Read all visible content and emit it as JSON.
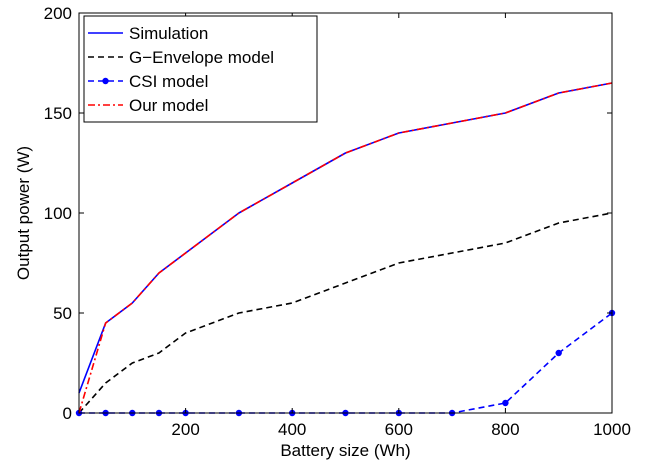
{
  "chart_data": {
    "type": "line",
    "title": "",
    "xlabel": "Battery size (Wh)",
    "ylabel": "Output power (W)",
    "xlim": [
      0,
      1000
    ],
    "ylim": [
      0,
      200
    ],
    "x_ticks": [
      200,
      400,
      600,
      800,
      1000
    ],
    "y_ticks": [
      0,
      50,
      100,
      150,
      200
    ],
    "grid": false,
    "legend_position": "top-left",
    "series": [
      {
        "name": "Simulation",
        "color": "#0000ff",
        "line_style": "solid",
        "marker": "none",
        "x": [
          0,
          50,
          100,
          150,
          200,
          300,
          400,
          500,
          600,
          700,
          800,
          900,
          1000
        ],
        "y": [
          10,
          45,
          55,
          70,
          80,
          100,
          115,
          130,
          140,
          145,
          150,
          160,
          165
        ]
      },
      {
        "name": "G−Envelope model",
        "color": "#000000",
        "line_style": "dashed",
        "marker": "none",
        "x": [
          0,
          50,
          100,
          150,
          200,
          300,
          400,
          500,
          600,
          700,
          800,
          900,
          1000
        ],
        "y": [
          0,
          15,
          25,
          30,
          40,
          50,
          55,
          65,
          75,
          80,
          85,
          95,
          100
        ]
      },
      {
        "name": "CSI model",
        "color": "#0000ff",
        "line_style": "dashed",
        "marker": "dot",
        "x": [
          0,
          50,
          100,
          150,
          200,
          300,
          400,
          500,
          600,
          700,
          800,
          900,
          1000
        ],
        "y": [
          0,
          0,
          0,
          0,
          0,
          0,
          0,
          0,
          0,
          0,
          5,
          30,
          50
        ]
      },
      {
        "name": "Our model",
        "color": "#ff0000",
        "line_style": "dashdot",
        "marker": "none",
        "x": [
          0,
          50,
          100,
          150,
          200,
          300,
          400,
          500,
          600,
          700,
          800,
          900,
          1000
        ],
        "y": [
          0,
          45,
          55,
          70,
          80,
          100,
          115,
          130,
          140,
          145,
          150,
          160,
          165
        ]
      }
    ]
  }
}
